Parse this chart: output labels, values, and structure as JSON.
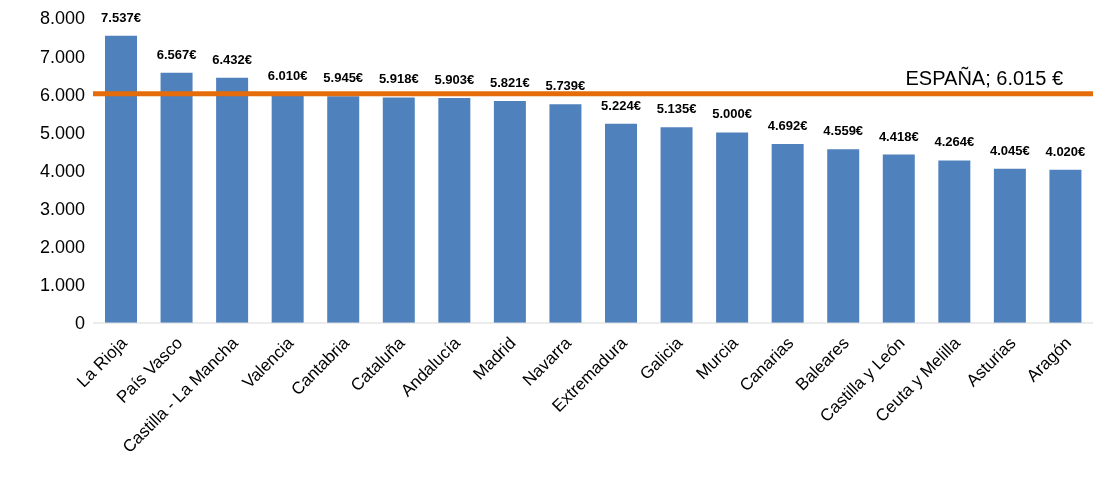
{
  "chart_data": {
    "type": "bar",
    "categories": [
      "La Rioja",
      "País Vasco",
      "Castilla - La Mancha",
      "Valencia",
      "Cantabria",
      "Cataluña",
      "Andalucía",
      "Madrid",
      "Navarra",
      "Extremadura",
      "Galicia",
      "Murcia",
      "Canarias",
      "Baleares",
      "Castilla y León",
      "Ceuta y Melilla",
      "Asturias",
      "Aragón"
    ],
    "values": [
      7537,
      6567,
      6432,
      6010,
      5945,
      5918,
      5903,
      5821,
      5739,
      5224,
      5135,
      5000,
      4692,
      4559,
      4418,
      4264,
      4045,
      4020
    ],
    "value_labels": [
      "7.537€",
      "6.567€",
      "6.432€",
      "6.010€",
      "5.945€",
      "5.918€",
      "5.903€",
      "5.821€",
      "5.739€",
      "5.224€",
      "5.135€",
      "5.000€",
      "4.692€",
      "4.559€",
      "4.418€",
      "4.264€",
      "4.045€",
      "4.020€"
    ],
    "color": "#4f81bd",
    "ylim": [
      0,
      8000
    ],
    "yticks": [
      {
        "value": 0,
        "label": "0"
      },
      {
        "value": 1000,
        "label": "1.000"
      },
      {
        "value": 2000,
        "label": "2.000"
      },
      {
        "value": 3000,
        "label": "3.000"
      },
      {
        "value": 4000,
        "label": "4.000"
      },
      {
        "value": 5000,
        "label": "5.000"
      },
      {
        "value": 6000,
        "label": "6.000"
      },
      {
        "value": 7000,
        "label": "7.000"
      },
      {
        "value": 8000,
        "label": "8.000"
      }
    ],
    "ref_lines": [
      {
        "axis": "y",
        "value": 6015,
        "label": "ESPAÑA; 6.015 €",
        "color": "#e46c0a"
      }
    ],
    "grid": false,
    "legend": false
  }
}
